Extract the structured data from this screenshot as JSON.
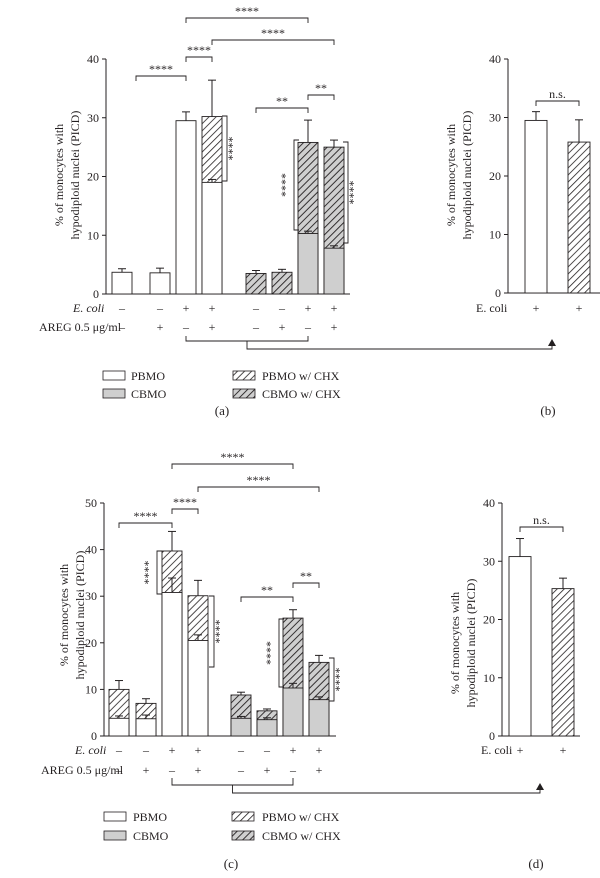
{
  "panels": [
    {
      "letter": "(a)",
      "ylabel": [
        "% of monocytes with",
        "hypodiploid nuclei (PICD)"
      ],
      "yticks": [
        "0",
        "10",
        "20",
        "30",
        "40"
      ],
      "legend": {
        "pbmo": "PBMO",
        "cbmo": "CBMO",
        "pbmo_chx": "PBMO w/ CHX",
        "cbmo_chx": "CBMO w/ CHX"
      }
    },
    {
      "letter": "(b)",
      "ylabel": [
        "% of monocytes with",
        "hypodiploid nuclei (PICD)"
      ],
      "yticks": [
        "0",
        "10",
        "20",
        "30",
        "40"
      ],
      "condition_label": "E. coli",
      "signs": [
        "+",
        "+"
      ],
      "ns": "n.s."
    },
    {
      "letter": "(c)",
      "ylabel": [
        "% of monocytes with",
        "hypodiploid nuclei (PICD)"
      ],
      "yticks": [
        "0",
        "10",
        "20",
        "30",
        "40",
        "50"
      ],
      "legend": {
        "pbmo": "PBMO",
        "cbmo": "CBMO",
        "pbmo_chx": "PBMO w/ CHX",
        "cbmo_chx": "CBMO w/ CHX"
      }
    },
    {
      "letter": "(d)",
      "ylabel": [
        "% of monocytes with",
        "hypodiploid nuclei (PICD)"
      ],
      "yticks": [
        "0",
        "10",
        "20",
        "30",
        "40"
      ],
      "condition_label": "E. coli",
      "signs": [
        "+",
        "+"
      ],
      "ns": "n.s."
    }
  ],
  "conditions": {
    "ecoli_label": "E. coli",
    "areg_label": "AREG 0.5 μg/ml",
    "ecoli_signs": [
      "–",
      "–",
      "+",
      "+",
      "–",
      "–",
      "+",
      "+"
    ],
    "areg_signs": [
      "–",
      "+",
      "–",
      "+",
      "–",
      "+",
      "–",
      "+"
    ]
  },
  "sig_labels": {
    "four": "****",
    "two": "**"
  },
  "chart_data": [
    {
      "panel": "a",
      "type": "bar",
      "ylim": [
        0,
        40
      ],
      "bars": [
        {
          "base": "PBMO",
          "value": 3.7,
          "err": 0.6,
          "chx_total": null,
          "chx_err": null
        },
        {
          "base": "PBMO",
          "value": 3.6,
          "err": 0.8,
          "chx_total": null,
          "chx_err": null
        },
        {
          "base": "PBMO",
          "value": 29.5,
          "err": 1.5,
          "chx_total": null,
          "chx_err": null
        },
        {
          "base": "PBMO",
          "value": 19.0,
          "err": 0.5,
          "chx_total": 30.2,
          "chx_err": 6.2
        },
        {
          "base": "CBMO",
          "value": 0,
          "err": 0,
          "chx_total": 3.5,
          "chx_err": 0.5
        },
        {
          "base": "CBMO",
          "value": 0,
          "err": 0,
          "chx_total": 3.7,
          "chx_err": 0.5
        },
        {
          "base": "CBMO",
          "value": 10.3,
          "err": 0.4,
          "chx_total": 25.8,
          "chx_err": 3.8
        },
        {
          "base": "CBMO",
          "value": 7.8,
          "err": 0.4,
          "chx_total": 25.0,
          "chx_err": 1.2
        }
      ]
    },
    {
      "panel": "b",
      "type": "bar",
      "ylim": [
        0,
        40
      ],
      "bars": [
        {
          "style": "open",
          "value": 29.5,
          "err": 1.5
        },
        {
          "style": "hatched",
          "value": 25.8,
          "err": 3.8
        }
      ]
    },
    {
      "panel": "c",
      "type": "bar",
      "ylim": [
        0,
        50
      ],
      "bars": [
        {
          "base": "PBMO",
          "value": 3.8,
          "err": 0.5,
          "chx_total": 10.0,
          "chx_err": 1.9
        },
        {
          "base": "PBMO",
          "value": 3.7,
          "err": 0.8,
          "chx_total": 7.0,
          "chx_err": 1.0
        },
        {
          "base": "PBMO",
          "value": 30.8,
          "err": 3.1,
          "chx_total": 39.7,
          "chx_err": 4.2
        },
        {
          "base": "PBMO",
          "value": 20.5,
          "err": 1.2,
          "chx_total": 30.1,
          "chx_err": 3.3
        },
        {
          "base": "CBMO",
          "value": 3.8,
          "err": 0.4,
          "chx_total": 8.8,
          "chx_err": 0.6
        },
        {
          "base": "CBMO",
          "value": 3.5,
          "err": 0.4,
          "chx_total": 5.4,
          "chx_err": 0.4
        },
        {
          "base": "CBMO",
          "value": 10.3,
          "err": 1.0,
          "chx_total": 25.3,
          "chx_err": 1.8
        },
        {
          "base": "CBMO",
          "value": 7.8,
          "err": 0.6,
          "chx_total": 15.8,
          "chx_err": 1.5
        }
      ]
    },
    {
      "panel": "d",
      "type": "bar",
      "ylim": [
        0,
        40
      ],
      "bars": [
        {
          "style": "open",
          "value": 30.8,
          "err": 3.1
        },
        {
          "style": "hatched",
          "value": 25.3,
          "err": 1.8
        }
      ]
    }
  ]
}
